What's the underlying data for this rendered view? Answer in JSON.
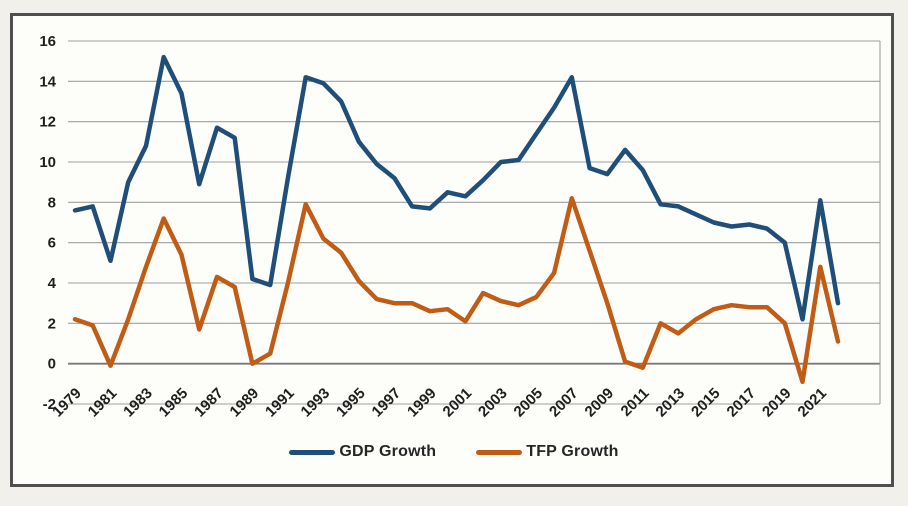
{
  "chart_data": {
    "type": "line",
    "x": [
      1979,
      1980,
      1981,
      1982,
      1983,
      1984,
      1985,
      1986,
      1987,
      1988,
      1989,
      1990,
      1991,
      1992,
      1993,
      1994,
      1995,
      1996,
      1997,
      1998,
      1999,
      2000,
      2001,
      2002,
      2003,
      2004,
      2005,
      2006,
      2007,
      2008,
      2009,
      2010,
      2011,
      2012,
      2013,
      2014,
      2015,
      2016,
      2017,
      2018,
      2019,
      2020,
      2021,
      2022
    ],
    "series": [
      {
        "name": "GDP Growth",
        "color": "#1f4e79",
        "values": [
          7.6,
          7.8,
          5.1,
          9.0,
          10.8,
          15.2,
          13.4,
          8.9,
          11.7,
          11.2,
          4.2,
          3.9,
          9.2,
          14.2,
          13.9,
          13.0,
          11.0,
          9.9,
          9.2,
          7.8,
          7.7,
          8.5,
          8.3,
          9.1,
          10.0,
          10.1,
          11.4,
          12.7,
          14.2,
          9.7,
          9.4,
          10.6,
          9.6,
          7.9,
          7.8,
          7.4,
          7.0,
          6.8,
          6.9,
          6.7,
          6.0,
          2.2,
          8.1,
          3.0
        ]
      },
      {
        "name": "TFP Growth",
        "color": "#c05c15",
        "values": [
          2.2,
          1.9,
          -0.1,
          2.2,
          4.8,
          7.2,
          5.4,
          1.7,
          4.3,
          3.8,
          0.0,
          0.5,
          4.0,
          7.9,
          6.2,
          5.5,
          4.1,
          3.2,
          3.0,
          3.0,
          2.6,
          2.7,
          2.1,
          3.5,
          3.1,
          2.9,
          3.3,
          4.5,
          8.2,
          5.6,
          3.0,
          0.1,
          -0.2,
          2.0,
          1.5,
          2.2,
          2.7,
          2.9,
          2.8,
          2.8,
          2.0,
          -0.9,
          4.8,
          1.1
        ]
      }
    ],
    "xtick_labels": [
      "1979",
      "1981",
      "1983",
      "1985",
      "1987",
      "1989",
      "1991",
      "1993",
      "1995",
      "1997",
      "1999",
      "2001",
      "2003",
      "2005",
      "2007",
      "2009",
      "2011",
      "2013",
      "2015",
      "2017",
      "2019",
      "2021"
    ],
    "ytick_labels": [
      "16",
      "14",
      "12",
      "10",
      "8",
      "6",
      "4",
      "2",
      "0",
      "-2"
    ],
    "ylim": [
      -2,
      16
    ],
    "ytick_step": 2,
    "grid": true,
    "grid_color": "#a0a0a0",
    "zero_axis_color": "#7a7a7a",
    "legend_position": "bottom",
    "legend": [
      "GDP Growth",
      "TFP Growth"
    ]
  }
}
